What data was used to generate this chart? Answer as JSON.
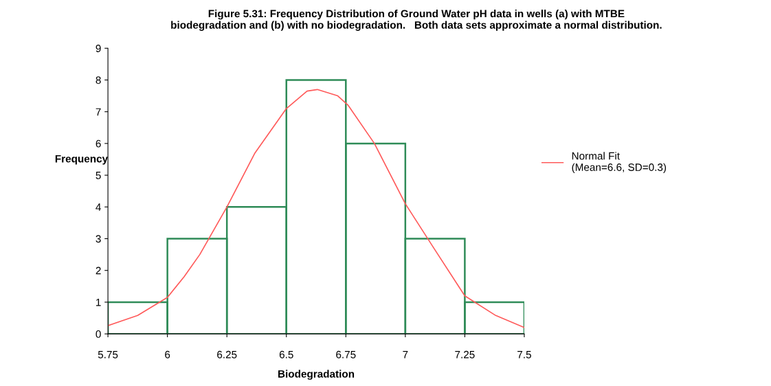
{
  "chart_data": {
    "type": "histogram",
    "title": "Figure 5.31: Frequency Distribution of Ground Water pH data in wells (a) with MTBE\nbiodegradation and (b) with no biodegradation.   Both data sets approximate a normal distribution.",
    "xlabel": "Biodegradation",
    "ylabel": "Frequency",
    "bins": [
      5.75,
      6,
      6.25,
      6.5,
      6.75,
      7,
      7.25,
      7.5
    ],
    "values": [
      1,
      3,
      4,
      8,
      6,
      3,
      1
    ],
    "color": "#2e8b57",
    "series": [
      {
        "name": "Normal Fit\n(Mean=6.6, SD=0.3)",
        "type": "line",
        "color": "#ff5a5a",
        "x": [
          5.75,
          5.875,
          6.0,
          6.07,
          6.136,
          6.25,
          6.368,
          6.5,
          6.587,
          6.63,
          6.716,
          6.76,
          6.87,
          7.0,
          7.12,
          7.25,
          7.38,
          7.5
        ],
        "values": [
          0.26,
          0.58,
          1.15,
          1.8,
          2.5,
          4.0,
          5.7,
          7.1,
          7.65,
          7.7,
          7.5,
          7.2,
          6.0,
          4.1,
          2.7,
          1.2,
          0.58,
          0.2
        ]
      }
    ],
    "xlim": [
      5.75,
      7.5
    ],
    "xticks": [
      5.75,
      6,
      6.25,
      6.5,
      6.75,
      7,
      7.25,
      7.5
    ],
    "ylim": [
      0,
      9
    ],
    "yticks": [
      0,
      1,
      2,
      3,
      4,
      5,
      6,
      7,
      8,
      9
    ],
    "grid": false,
    "legend": "right"
  }
}
